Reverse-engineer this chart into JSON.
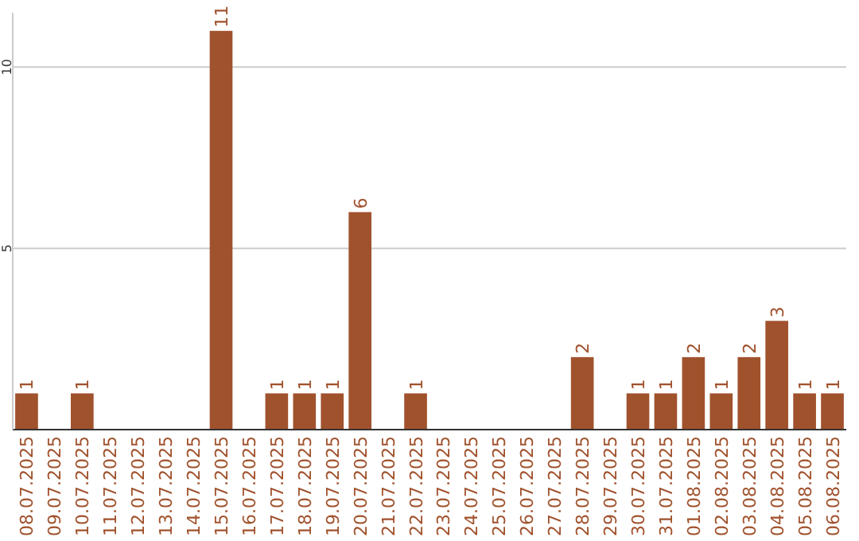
{
  "chart_data": {
    "type": "bar",
    "categories": [
      "08.07.2025",
      "09.07.2025",
      "10.07.2025",
      "11.07.2025",
      "12.07.2025",
      "13.07.2025",
      "14.07.2025",
      "15.07.2025",
      "16.07.2025",
      "17.07.2025",
      "18.07.2025",
      "19.07.2025",
      "20.07.2025",
      "21.07.2025",
      "22.07.2025",
      "23.07.2025",
      "24.07.2025",
      "25.07.2025",
      "26.07.2025",
      "27.07.2025",
      "28.07.2025",
      "29.07.2025",
      "30.07.2025",
      "31.07.2025",
      "01.08.2025",
      "02.08.2025",
      "03.08.2025",
      "04.08.2025",
      "05.08.2025",
      "06.08.2025"
    ],
    "values": [
      1,
      0,
      1,
      0,
      0,
      0,
      0,
      11,
      0,
      1,
      1,
      1,
      6,
      0,
      1,
      0,
      0,
      0,
      0,
      0,
      2,
      0,
      1,
      1,
      2,
      1,
      2,
      3,
      1,
      1
    ],
    "value_labels": [
      "1",
      null,
      "1",
      null,
      null,
      null,
      null,
      "11",
      null,
      "1",
      "1",
      "1",
      "6",
      null,
      "1",
      null,
      null,
      null,
      null,
      null,
      "2",
      null,
      "1",
      "1",
      "2",
      "1",
      "2",
      "3",
      "1",
      "1"
    ],
    "color": "#a0522d",
    "ylim": [
      0,
      11.5
    ],
    "yticks": [
      5,
      10
    ],
    "grid": "y"
  }
}
